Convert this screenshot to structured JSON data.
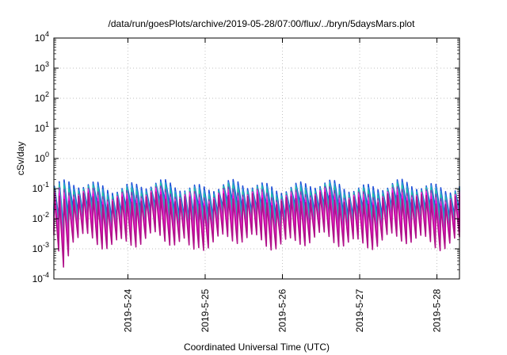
{
  "chart_data": {
    "type": "line",
    "title": "/data/run/goesPlots/archive/2019-05-28/07:00/flux/../bryn/5daysMars.plot",
    "xlabel": "Coordinated Universal Time (UTC)",
    "ylabel": "cSv/day",
    "yscale": "log",
    "ylim": [
      0.0001,
      10000
    ],
    "xlim": [
      "2019-05-23T01:00",
      "2019-05-28T07:00"
    ],
    "y_ticks": [
      {
        "base": "10",
        "exp": "4"
      },
      {
        "base": "10",
        "exp": "3"
      },
      {
        "base": "10",
        "exp": "2"
      },
      {
        "base": "10",
        "exp": "1"
      },
      {
        "base": "10",
        "exp": "0"
      },
      {
        "base": "10",
        "exp": "-1"
      },
      {
        "base": "10",
        "exp": "-2"
      },
      {
        "base": "10",
        "exp": "-3"
      },
      {
        "base": "10",
        "exp": "-4"
      }
    ],
    "x_ticks": [
      "2019-5-24",
      "2019-5-25",
      "2019-5-26",
      "2019-5-27",
      "2019-5-28"
    ],
    "grid": true,
    "legend": "none",
    "sawtooth": {
      "period_hours": 1.5,
      "irregular_dips": [
        {
          "x": "2019-05-23T03:00",
          "depth_factor": 0.35
        },
        {
          "x": "2019-05-23T05:00",
          "depth_factor": 0.4
        },
        {
          "x": "2019-05-24T20:00",
          "depth_factor": 0.6
        }
      ]
    },
    "series": [
      {
        "color": "#1f4fd8",
        "peak": 0.12,
        "trough": 0.02
      },
      {
        "color": "#2b9bd6",
        "peak": 0.1,
        "trough": 0.013
      },
      {
        "color": "#22c3a4",
        "peak": 0.085,
        "trough": 0.009
      },
      {
        "color": "#7e3fb6",
        "peak": 0.07,
        "trough": 0.006
      },
      {
        "color": "#e33fc8",
        "peak": 0.06,
        "trough": 0.004
      },
      {
        "color": "#ff00e0",
        "peak": 0.05,
        "trough": 0.0025
      },
      {
        "color": "#b0128a",
        "peak": 0.045,
        "trough": 0.0018
      }
    ]
  }
}
